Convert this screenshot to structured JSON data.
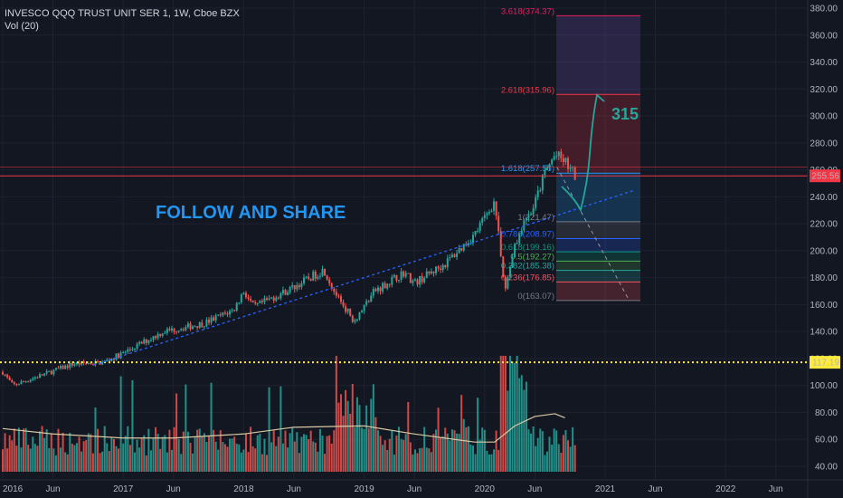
{
  "legend": {
    "symbol_line": "INVESCO QQQ TRUST UNIT SER 1, 1W, Cboe BZX",
    "volume_line": "Vol (20)"
  },
  "colors": {
    "background": "#131722",
    "up": "#26a69a",
    "down": "#ef5350",
    "price_line": "#f23645",
    "dotted_support": "#ffeb3b",
    "trendline": "#2962ff",
    "projection": "#26a69a",
    "annotation_text": "#2196f3",
    "vol_ma": "#d9c9a3"
  },
  "annotations": {
    "headline": "FOLLOW AND SHARE",
    "target": "315"
  },
  "chart_data": {
    "type": "candlestick",
    "series_name": "INVESCO QQQ TRUST UNIT SER 1",
    "interval": "1W",
    "y_axis": {
      "ticks": [
        40,
        60,
        80,
        100,
        120,
        140,
        160,
        180,
        200,
        220,
        240,
        260,
        280,
        300,
        320,
        340,
        360,
        380
      ],
      "tick_labels": [
        "40.00",
        "60.00",
        "80.00",
        "100.00",
        "120.00",
        "140.00",
        "160.00",
        "180.00",
        "200.00",
        "220.00",
        "240.00",
        "260.00",
        "280.00",
        "300.00",
        "320.00",
        "340.00",
        "360.00",
        "380.00"
      ],
      "range": [
        36,
        386
      ]
    },
    "x_axis": {
      "labels": [
        "2016",
        "Jun",
        "2017",
        "Jun",
        "2018",
        "Jun",
        "2019",
        "Jun",
        "2020",
        "Jun",
        "2021",
        "Jun",
        "2022",
        "Jun"
      ],
      "dates": [
        "2016-01",
        "2016-06",
        "2017-01",
        "2017-06",
        "2018-01",
        "2018-06",
        "2019-01",
        "2019-06",
        "2020-01",
        "2020-06",
        "2021-01",
        "2021-06",
        "2022-01",
        "2022-06"
      ]
    },
    "price_path": [
      [
        "2016-01",
        110
      ],
      [
        "2016-02",
        100
      ],
      [
        "2016-05",
        108
      ],
      [
        "2016-08",
        116
      ],
      [
        "2016-11",
        117
      ],
      [
        "2017-01",
        124
      ],
      [
        "2017-05",
        140
      ],
      [
        "2017-09",
        146
      ],
      [
        "2017-12",
        156
      ],
      [
        "2018-01",
        170
      ],
      [
        "2018-02",
        158
      ],
      [
        "2018-06",
        173
      ],
      [
        "2018-09",
        186
      ],
      [
        "2018-10",
        170
      ],
      [
        "2018-12",
        148
      ],
      [
        "2019-02",
        170
      ],
      [
        "2019-05",
        184
      ],
      [
        "2019-06",
        176
      ],
      [
        "2019-09",
        190
      ],
      [
        "2019-12",
        212
      ],
      [
        "2020-02",
        237
      ],
      [
        "2020-03",
        170
      ],
      [
        "2020-04",
        205
      ],
      [
        "2020-06",
        235
      ],
      [
        "2020-07",
        258
      ],
      [
        "2020-08",
        271
      ],
      [
        "2020-09",
        266
      ],
      [
        "2020-10",
        255.56
      ]
    ],
    "last_price": 255.56,
    "last_price_label": "255.56",
    "support_level": 117.19,
    "support_label": "117.19",
    "volume": {
      "ma_length": 20,
      "ma_path": [
        [
          "2016-01",
          68
        ],
        [
          "2016-06",
          64
        ],
        [
          "2017-01",
          61
        ],
        [
          "2017-06",
          61
        ],
        [
          "2018-01",
          64
        ],
        [
          "2018-06",
          69
        ],
        [
          "2019-01",
          70
        ],
        [
          "2019-06",
          64
        ],
        [
          "2019-12",
          58
        ],
        [
          "2020-02",
          58
        ],
        [
          "2020-04",
          70
        ],
        [
          "2020-06",
          77
        ],
        [
          "2020-08",
          79
        ],
        [
          "2020-09",
          76
        ]
      ]
    },
    "trendline": {
      "start": [
        "2016-10",
        115
      ],
      "end": [
        "2021-04",
        245
      ]
    },
    "fibonacci": {
      "levels": [
        {
          "ratio": 3.618,
          "price": 374.37,
          "label": "3.618(374.37)",
          "color": "#e91e63"
        },
        {
          "ratio": 2.618,
          "price": 315.96,
          "label": "2.618(315.96)",
          "color": "#f23645"
        },
        {
          "ratio": 1.618,
          "price": 257.56,
          "label": "1.618(257.56)",
          "color": "#2196f3"
        },
        {
          "ratio": 1,
          "price": 221.47,
          "label": "1(221.47)",
          "color": "#787b86"
        },
        {
          "ratio": 0.786,
          "price": 208.97,
          "label": "0.786(208.97)",
          "color": "#2962ff"
        },
        {
          "ratio": 0.618,
          "price": 199.16,
          "label": "0.618(199.16)",
          "color": "#089981"
        },
        {
          "ratio": 0.5,
          "price": 192.27,
          "label": "0.5(192.27)",
          "color": "#4caf50"
        },
        {
          "ratio": 0.382,
          "price": 185.38,
          "label": "0.382(185.38)",
          "color": "#26a69a"
        },
        {
          "ratio": 0.236,
          "price": 176.85,
          "label": "0.236(176.85)",
          "color": "#f7525f"
        },
        {
          "ratio": 0,
          "price": 163.07,
          "label": "0(163.07)",
          "color": "#787b86"
        }
      ]
    }
  }
}
